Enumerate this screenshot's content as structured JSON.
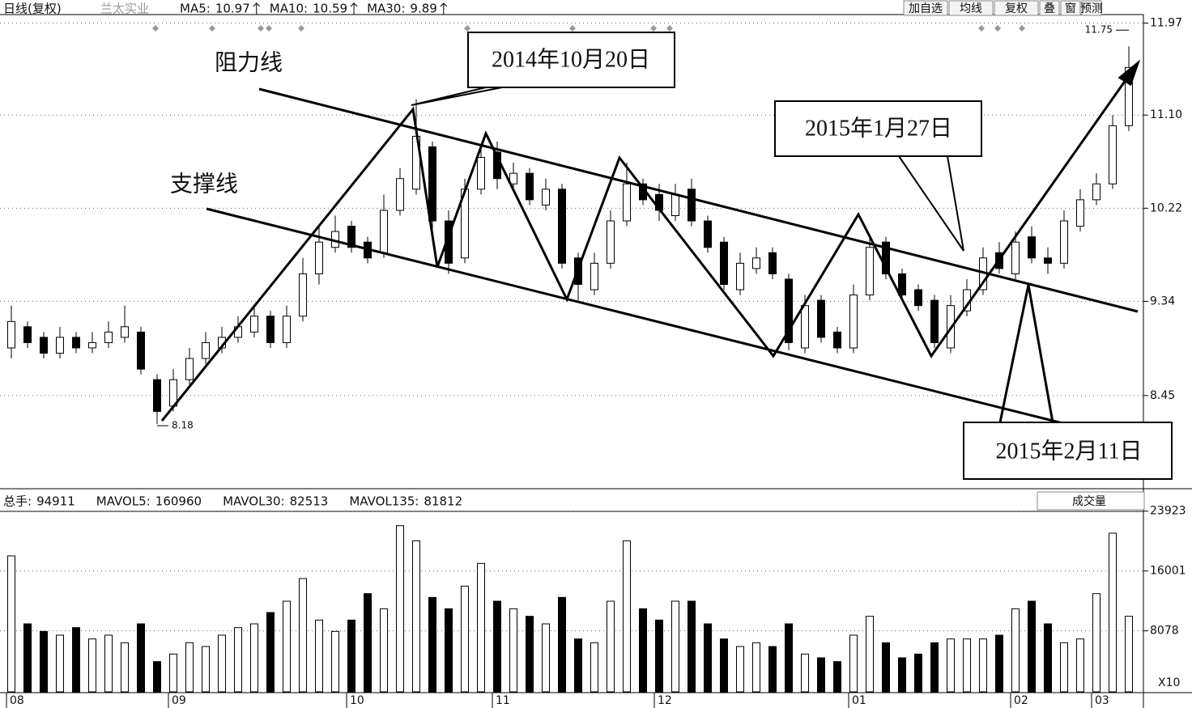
{
  "chart_data": [
    {
      "type": "candlestick",
      "title": "日线(复权)",
      "subtitle": "兰太实业",
      "indicators": [
        {
          "label": "MA5:",
          "value": 10.97
        },
        {
          "label": "MA10:",
          "value": 10.59
        },
        {
          "label": "MA30:",
          "value": 9.89
        }
      ],
      "buttons": [
        "加自选",
        "均线",
        "复权",
        "叠",
        "窗",
        "预测"
      ],
      "open": [
        8.9,
        9.1,
        9.0,
        8.85,
        9.0,
        8.9,
        8.95,
        9.0,
        9.05,
        8.6,
        8.35,
        8.6,
        8.8,
        8.9,
        9.0,
        9.05,
        9.2,
        8.95,
        9.2,
        9.6,
        9.85,
        10.05,
        9.9,
        9.8,
        10.2,
        10.4,
        10.8,
        10.1,
        9.75,
        10.4,
        10.75,
        10.45,
        10.55,
        10.25,
        10.4,
        9.75,
        9.45,
        9.7,
        10.1,
        10.45,
        10.35,
        10.15,
        10.4,
        10.1,
        9.9,
        9.45,
        9.65,
        9.8,
        9.55,
        8.9,
        9.35,
        9.05,
        8.9,
        9.4,
        9.9,
        9.6,
        9.45,
        9.35,
        8.9,
        9.25,
        9.45,
        9.8,
        9.6,
        9.95,
        9.75,
        9.7,
        10.05,
        10.3,
        10.45,
        11.0
      ],
      "high": [
        9.3,
        9.15,
        9.05,
        9.1,
        9.05,
        9.05,
        9.15,
        9.3,
        9.1,
        8.65,
        8.7,
        8.9,
        9.05,
        9.1,
        9.2,
        9.3,
        9.25,
        9.3,
        9.75,
        10.05,
        10.15,
        10.1,
        9.95,
        10.35,
        10.6,
        11.25,
        10.85,
        10.2,
        10.5,
        10.8,
        10.85,
        10.65,
        10.6,
        10.5,
        10.45,
        9.8,
        9.8,
        10.2,
        10.65,
        10.5,
        10.45,
        10.45,
        10.5,
        10.15,
        9.95,
        9.8,
        9.85,
        9.85,
        9.6,
        9.4,
        9.4,
        9.1,
        9.5,
        9.95,
        9.95,
        9.65,
        9.5,
        9.4,
        9.4,
        9.55,
        9.85,
        9.9,
        10.0,
        10.05,
        9.85,
        10.2,
        10.4,
        10.55,
        11.1,
        11.75
      ],
      "low": [
        8.8,
        8.9,
        8.8,
        8.8,
        8.85,
        8.85,
        8.9,
        8.95,
        8.65,
        8.18,
        8.3,
        8.55,
        8.75,
        8.85,
        8.95,
        9.0,
        8.9,
        8.9,
        9.15,
        9.5,
        9.8,
        9.8,
        9.7,
        9.75,
        10.15,
        10.35,
        10.0,
        9.6,
        9.7,
        10.35,
        10.4,
        10.4,
        10.25,
        10.2,
        9.65,
        9.35,
        9.4,
        9.65,
        10.05,
        10.25,
        10.1,
        10.1,
        10.05,
        9.8,
        9.45,
        9.4,
        9.6,
        9.55,
        8.88,
        8.85,
        8.95,
        8.85,
        8.85,
        9.35,
        9.55,
        9.35,
        9.25,
        8.9,
        8.85,
        9.2,
        9.4,
        9.6,
        9.55,
        9.7,
        9.6,
        9.65,
        10.0,
        10.25,
        10.4,
        10.95
      ],
      "close": [
        9.15,
        8.95,
        8.85,
        9.0,
        8.9,
        8.95,
        9.05,
        9.1,
        8.7,
        8.3,
        8.6,
        8.8,
        8.95,
        9.0,
        9.1,
        9.2,
        8.95,
        9.2,
        9.6,
        9.9,
        10.0,
        9.85,
        9.75,
        10.2,
        10.5,
        10.9,
        10.1,
        9.7,
        10.4,
        10.7,
        10.5,
        10.55,
        10.3,
        10.4,
        9.7,
        9.5,
        9.7,
        10.1,
        10.45,
        10.3,
        10.2,
        10.35,
        10.1,
        9.85,
        9.5,
        9.7,
        9.75,
        9.6,
        8.95,
        9.3,
        9.0,
        8.9,
        9.4,
        9.85,
        9.6,
        9.4,
        9.3,
        8.95,
        9.3,
        9.45,
        9.75,
        9.65,
        9.9,
        9.75,
        9.7,
        10.1,
        10.3,
        10.45,
        11.0,
        11.55
      ],
      "ylim": [
        7.6,
        12.05
      ],
      "yticks": [
        11.97,
        {
          "value": 11.1,
          "label": "11.10"
        },
        10.22,
        9.34,
        8.45
      ],
      "xticks": [
        {
          "value": 0,
          "label": "08"
        },
        {
          "value": 10,
          "label": "09"
        },
        {
          "value": 21,
          "label": "10"
        },
        {
          "value": 30,
          "label": "11"
        },
        {
          "value": 40,
          "label": "12"
        },
        {
          "value": 52,
          "label": "01"
        },
        {
          "value": 62,
          "label": "02"
        },
        {
          "value": 67,
          "label": "03"
        }
      ],
      "annotations": [
        "阻力线",
        "支撑线",
        "2014年10月20日",
        "2015年1月27日",
        "2015年2月11日"
      ]
    },
    {
      "type": "bar",
      "indicators": [
        {
          "label": "总手:",
          "value": 94911
        },
        {
          "label": "MAVOL5:",
          "value": 160960
        },
        {
          "label": "MAVOL30:",
          "value": 82513
        },
        {
          "label": "MAVOL135:",
          "value": 81812
        }
      ],
      "selector": "成交量",
      "multiplier": "X10",
      "values": [
        18000,
        9000,
        8000,
        7500,
        8500,
        7000,
        7500,
        6500,
        9000,
        4000,
        5000,
        6500,
        6000,
        7500,
        8500,
        9000,
        10500,
        12000,
        15000,
        9500,
        8000,
        9500,
        13000,
        11000,
        22000,
        20000,
        12500,
        11000,
        14000,
        17000,
        12000,
        11000,
        10000,
        9000,
        12500,
        7000,
        6500,
        12000,
        20000,
        11000,
        9500,
        12000,
        12000,
        9000,
        7000,
        6000,
        6500,
        6000,
        9000,
        5000,
        4500,
        4000,
        7500,
        10000,
        6500,
        4500,
        5000,
        6500,
        7000,
        7000,
        7000,
        7500,
        11000,
        12000,
        9000,
        6500,
        7000,
        13000,
        21000,
        10000
      ],
      "ylim": [
        0,
        24000
      ],
      "yticks": [
        23923,
        16001,
        8078
      ]
    }
  ]
}
